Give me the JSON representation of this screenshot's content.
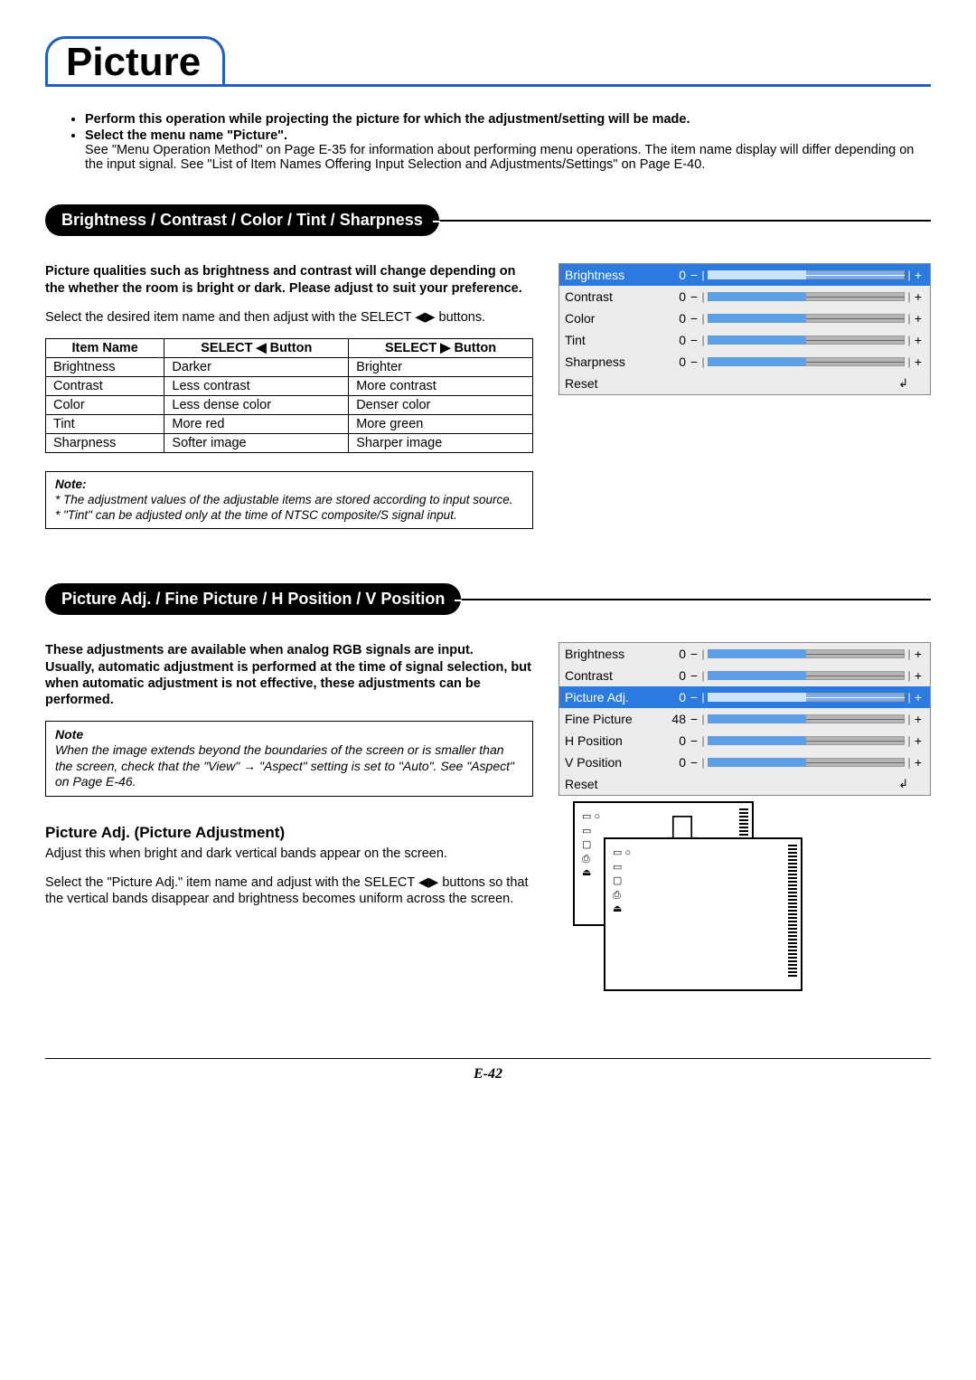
{
  "page_title": "Picture",
  "intro": {
    "b1": "Perform this operation while projecting the picture for which the adjustment/setting will be made.",
    "b2": "Select the menu name \"Picture\".",
    "sub": "See \"Menu Operation Method\" on Page E-35 for information about performing menu operations. The item name display will differ depending on the input signal. See \"List of Item Names Offering Input Selection and Adjustments/Settings\" on Page E-40."
  },
  "sec1": {
    "heading": "Brightness / Contrast / Color / Tint / Sharpness",
    "lead_b": "Picture qualities such as brightness and contrast will change depending on the whether the room is bright or dark. Please adjust to suit your preference.",
    "lead2_a": "Select the desired item name and then adjust with the SELECT ",
    "lead2_b": " buttons.",
    "th1": "Item Name",
    "th2": "SELECT ◀ Button",
    "th3": "SELECT ▶ Button",
    "rows": [
      {
        "n": "Brightness",
        "l": "Darker",
        "r": "Brighter"
      },
      {
        "n": "Contrast",
        "l": "Less contrast",
        "r": "More contrast"
      },
      {
        "n": "Color",
        "l": "Less dense color",
        "r": "Denser color"
      },
      {
        "n": "Tint",
        "l": "More red",
        "r": "More green"
      },
      {
        "n": "Sharpness",
        "l": "Softer image",
        "r": "Sharper image"
      }
    ],
    "note_hdr": "Note:",
    "note1": "*   The adjustment values of the adjustable items are stored according to input source.",
    "note2": "*   \"Tint\" can be adjusted only at the time of NTSC composite/S signal input."
  },
  "osd1": {
    "rows": [
      {
        "label": "Brightness",
        "val": "0",
        "sel": true,
        "fill": 50
      },
      {
        "label": "Contrast",
        "val": "0",
        "sel": false,
        "fill": 50
      },
      {
        "label": "Color",
        "val": "0",
        "sel": false,
        "fill": 50
      },
      {
        "label": "Tint",
        "val": "0",
        "sel": false,
        "fill": 50
      },
      {
        "label": "Sharpness",
        "val": "0",
        "sel": false,
        "fill": 50
      }
    ],
    "reset": "Reset"
  },
  "sec2": {
    "heading": "Picture Adj. / Fine Picture / H Position / V Position",
    "lead_b": "These adjustments are available when analog RGB signals are input.",
    "lead_b2": "Usually, automatic adjustment is performed at the time of signal selection, but when automatic adjustment is not effective, these adjustments can be performed.",
    "note_hdr": "Note",
    "note": "When the image extends beyond the boundaries of the screen or is smaller than the screen, check that the \"View\" → \"Aspect\" setting is set to \"Auto\". See \"Aspect\" on Page E-46."
  },
  "osd2": {
    "rows": [
      {
        "label": "Brightness",
        "val": "0",
        "sel": false,
        "fill": 50
      },
      {
        "label": "Contrast",
        "val": "0",
        "sel": false,
        "fill": 50
      },
      {
        "label": "Picture Adj.",
        "val": "0",
        "sel": true,
        "fill": 50
      },
      {
        "label": "Fine Picture",
        "val": "48",
        "sel": false,
        "fill": 50
      },
      {
        "label": "H Position",
        "val": "0",
        "sel": false,
        "fill": 50
      },
      {
        "label": "V Position",
        "val": "0",
        "sel": false,
        "fill": 50
      }
    ],
    "reset": "Reset"
  },
  "sec3": {
    "heading": "Picture Adj. (Picture Adjustment)",
    "p1": "Adjust this when bright and dark vertical bands appear on the screen.",
    "p2a": "Select the \"Picture Adj.\" item name and adjust with the SELECT ",
    "p2b": " buttons so that the vertical bands disappear and brightness becomes uniform across the screen."
  },
  "footer": "E-42",
  "colors": {
    "blue": "#2060c0",
    "osd_sel": "#2a7ae0",
    "osd_bg": "#ececec"
  }
}
